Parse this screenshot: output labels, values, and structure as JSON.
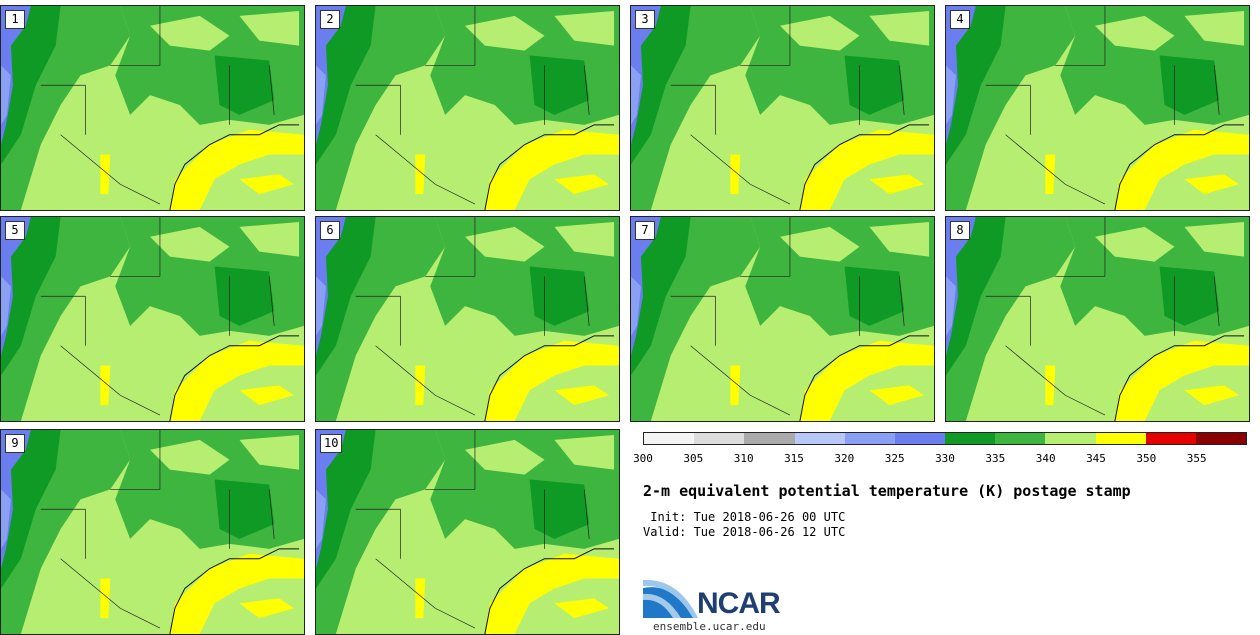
{
  "panels": [
    {
      "label": "1"
    },
    {
      "label": "2"
    },
    {
      "label": "3"
    },
    {
      "label": "4"
    },
    {
      "label": "5"
    },
    {
      "label": "6"
    },
    {
      "label": "7"
    },
    {
      "label": "8"
    },
    {
      "label": "9"
    },
    {
      "label": "10"
    }
  ],
  "colorbar": {
    "colors": [
      "#f4f4f4",
      "#dcdcdc",
      "#aaaaaa",
      "#b8c8f8",
      "#8aa0f4",
      "#6a7ef0",
      "#0f9a26",
      "#3eb53e",
      "#b6ee72",
      "#ffff00",
      "#e50000",
      "#8a0000"
    ],
    "ticks": [
      "300",
      "305",
      "310",
      "315",
      "320",
      "325",
      "330",
      "335",
      "340",
      "345",
      "350",
      "355"
    ]
  },
  "title": "2-m equivalent potential temperature (K) postage stamp",
  "init": " Init: Tue 2018-06-26 00 UTC",
  "valid": "Valid: Tue 2018-06-26 12 UTC",
  "logo_text": "NCAR",
  "site": "ensemble.ucar.edu"
}
